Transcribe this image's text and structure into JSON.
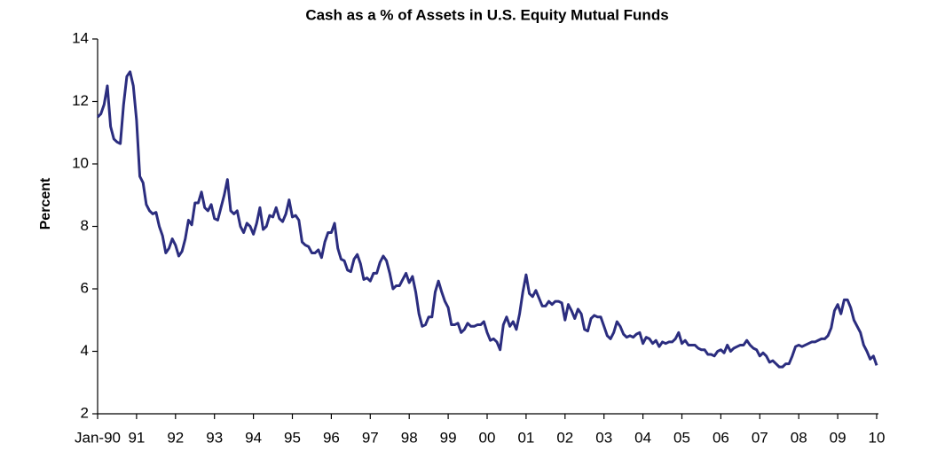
{
  "chart_data": {
    "type": "line",
    "title": "Cash as a % of Assets in U.S. Equity Mutual Funds",
    "y_label": "Percent",
    "categories": [
      "Jan-90",
      null,
      null,
      null,
      null,
      null,
      null,
      null,
      null,
      null,
      null,
      null,
      "91",
      null,
      null,
      null,
      null,
      null,
      null,
      null,
      null,
      null,
      null,
      null,
      "92",
      null,
      null,
      null,
      null,
      null,
      null,
      null,
      null,
      null,
      null,
      null,
      "93",
      null,
      null,
      null,
      null,
      null,
      null,
      null,
      null,
      null,
      null,
      null,
      "94",
      null,
      null,
      null,
      null,
      null,
      null,
      null,
      null,
      null,
      null,
      null,
      "95",
      null,
      null,
      null,
      null,
      null,
      null,
      null,
      null,
      null,
      null,
      null,
      "96",
      null,
      null,
      null,
      null,
      null,
      null,
      null,
      null,
      null,
      null,
      null,
      "97",
      null,
      null,
      null,
      null,
      null,
      null,
      null,
      null,
      null,
      null,
      null,
      "98",
      null,
      null,
      null,
      null,
      null,
      null,
      null,
      null,
      null,
      null,
      null,
      "99",
      null,
      null,
      null,
      null,
      null,
      null,
      null,
      null,
      null,
      null,
      null,
      "00",
      null,
      null,
      null,
      null,
      null,
      null,
      null,
      null,
      null,
      null,
      null,
      "01",
      null,
      null,
      null,
      null,
      null,
      null,
      null,
      null,
      null,
      null,
      null,
      "02",
      null,
      null,
      null,
      null,
      null,
      null,
      null,
      null,
      null,
      null,
      null,
      "03",
      null,
      null,
      null,
      null,
      null,
      null,
      null,
      null,
      null,
      null,
      null,
      "04",
      null,
      null,
      null,
      null,
      null,
      null,
      null,
      null,
      null,
      null,
      null,
      "05",
      null,
      null,
      null,
      null,
      null,
      null,
      null,
      null,
      null,
      null,
      null,
      "06",
      null,
      null,
      null,
      null,
      null,
      null,
      null,
      null,
      null,
      null,
      null,
      "07",
      null,
      null,
      null,
      null,
      null,
      null,
      null,
      null,
      null,
      null,
      null,
      "08",
      null,
      null,
      null,
      null,
      null,
      null,
      null,
      null,
      null,
      null,
      null,
      "09",
      null,
      null,
      null,
      null,
      null,
      null,
      null,
      null,
      null,
      null,
      null,
      "10"
    ],
    "series": [
      {
        "name": "Cash as a % of Assets",
        "color": "#2b2d7f",
        "values": [
          11.5,
          11.6,
          11.9,
          12.5,
          11.2,
          10.8,
          10.7,
          10.65,
          11.9,
          12.8,
          12.95,
          12.5,
          11.4,
          9.6,
          9.4,
          8.7,
          8.5,
          8.4,
          8.45,
          8.0,
          7.7,
          7.15,
          7.3,
          7.6,
          7.4,
          7.05,
          7.2,
          7.6,
          8.2,
          8.05,
          8.75,
          8.75,
          9.1,
          8.6,
          8.5,
          8.7,
          8.25,
          8.2,
          8.6,
          9.0,
          9.5,
          8.5,
          8.4,
          8.5,
          8.0,
          7.8,
          8.1,
          8.0,
          7.75,
          8.1,
          8.6,
          7.9,
          8.0,
          8.35,
          8.3,
          8.6,
          8.25,
          8.15,
          8.4,
          8.85,
          8.3,
          8.35,
          8.2,
          7.5,
          7.4,
          7.35,
          7.15,
          7.15,
          7.25,
          7.0,
          7.5,
          7.8,
          7.8,
          8.1,
          7.3,
          6.95,
          6.9,
          6.6,
          6.55,
          6.95,
          7.1,
          6.8,
          6.3,
          6.35,
          6.25,
          6.5,
          6.5,
          6.85,
          7.05,
          6.9,
          6.5,
          6.0,
          6.1,
          6.1,
          6.3,
          6.5,
          6.2,
          6.4,
          5.9,
          5.2,
          4.8,
          4.85,
          5.1,
          5.1,
          5.9,
          6.25,
          5.9,
          5.6,
          5.4,
          4.85,
          4.85,
          4.9,
          4.6,
          4.7,
          4.9,
          4.8,
          4.8,
          4.85,
          4.85,
          4.95,
          4.6,
          4.35,
          4.4,
          4.3,
          4.05,
          4.85,
          5.1,
          4.8,
          4.95,
          4.7,
          5.2,
          5.9,
          6.45,
          5.85,
          5.75,
          5.95,
          5.7,
          5.45,
          5.45,
          5.6,
          5.5,
          5.6,
          5.6,
          5.55,
          5.0,
          5.5,
          5.3,
          5.05,
          5.35,
          5.2,
          4.7,
          4.65,
          5.05,
          5.15,
          5.1,
          5.1,
          4.8,
          4.5,
          4.4,
          4.6,
          4.95,
          4.8,
          4.55,
          4.45,
          4.5,
          4.45,
          4.55,
          4.6,
          4.25,
          4.45,
          4.4,
          4.25,
          4.35,
          4.15,
          4.3,
          4.25,
          4.3,
          4.3,
          4.4,
          4.6,
          4.25,
          4.35,
          4.2,
          4.2,
          4.2,
          4.1,
          4.05,
          4.05,
          3.9,
          3.9,
          3.85,
          4.0,
          4.05,
          3.95,
          4.2,
          4.0,
          4.1,
          4.15,
          4.2,
          4.2,
          4.35,
          4.2,
          4.1,
          4.05,
          3.85,
          3.95,
          3.85,
          3.65,
          3.7,
          3.6,
          3.5,
          3.5,
          3.6,
          3.6,
          3.85,
          4.15,
          4.2,
          4.15,
          4.2,
          4.25,
          4.3,
          4.3,
          4.35,
          4.4,
          4.4,
          4.5,
          4.75,
          5.3,
          5.5,
          5.2,
          5.65,
          5.65,
          5.4,
          5.0,
          4.8,
          4.6,
          4.2,
          4.0,
          3.75,
          3.85,
          3.55
        ]
      }
    ],
    "ylim": [
      2,
      14
    ],
    "yticks": [
      2,
      4,
      6,
      8,
      10,
      12,
      14
    ],
    "grid": false
  }
}
